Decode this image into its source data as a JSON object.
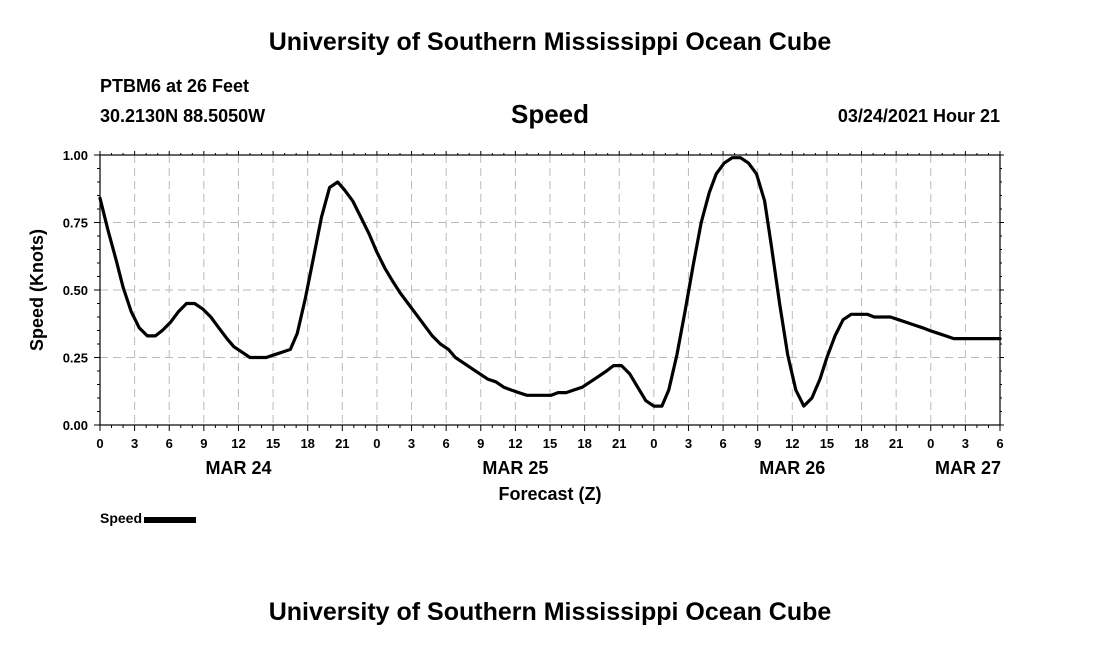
{
  "header": {
    "title": "University of Southern Mississippi Ocean Cube",
    "station": "PTBM6 at 26 Feet",
    "coords": "30.2130N 88.5050W",
    "variable": "Speed",
    "datetime": "03/24/2021 Hour 21"
  },
  "footer": {
    "title": "University of Southern Mississippi Ocean Cube"
  },
  "legend": {
    "label": "Speed"
  },
  "chart_data": {
    "type": "line",
    "title": "Speed",
    "xlabel": "Forecast (Z)",
    "ylabel": "Speed (Knots)",
    "ylim": [
      0,
      1.0
    ],
    "xlim_hours": [
      0,
      78
    ],
    "grid": true,
    "y_ticks": [
      "0.00",
      "0.25",
      "0.50",
      "0.75",
      "1.00"
    ],
    "x_tick_labels": [
      "0",
      "3",
      "6",
      "9",
      "12",
      "15",
      "18",
      "21",
      "0",
      "3",
      "6",
      "9",
      "12",
      "15",
      "18",
      "21",
      "0",
      "3",
      "6",
      "9",
      "12",
      "15",
      "18",
      "21",
      "0",
      "3",
      "6"
    ],
    "date_labels": [
      {
        "label": "MAR 24",
        "hour": 12
      },
      {
        "label": "MAR 25",
        "hour": 36
      },
      {
        "label": "MAR 26",
        "hour": 60
      },
      {
        "label": "MAR 27",
        "hour": 78
      }
    ],
    "series": [
      {
        "name": "Speed",
        "color": "#000000",
        "x": [
          0,
          0.7,
          1.4,
          2,
          2.7,
          3.4,
          4.1,
          4.8,
          5.4,
          6.1,
          6.8,
          7.5,
          8.2,
          8.9,
          9.6,
          10.3,
          11,
          11.6,
          12.3,
          13,
          13.7,
          14.4,
          15.1,
          15.8,
          16.5,
          17.1,
          17.8,
          18.5,
          19.2,
          19.9,
          20.6,
          21.2,
          21.9,
          22.6,
          23.3,
          24,
          24.7,
          25.4,
          26,
          26.7,
          27.4,
          28.1,
          28.8,
          29.5,
          30.2,
          30.8,
          31.5,
          32.2,
          32.9,
          33.6,
          34.3,
          35,
          35.6,
          36.3,
          37,
          37.7,
          38.4,
          39.1,
          39.7,
          40.4,
          41.1,
          41.8,
          42.5,
          43.2,
          43.9,
          44.5,
          45.2,
          45.9,
          46.6,
          47.3,
          48,
          48.7,
          49.3,
          50,
          50.7,
          51.4,
          52.1,
          52.8,
          53.4,
          54.1,
          54.8,
          55.5,
          56.2,
          56.9,
          57.6,
          58.2,
          58.9,
          59.6,
          60.3,
          61,
          61.7,
          62.4,
          63,
          63.7,
          64.4,
          65.1,
          65.8,
          66.5,
          67.1,
          67.8,
          68.5,
          69.2,
          69.9,
          70.6,
          71.3,
          71.9,
          72.6,
          73.3,
          74,
          74.7,
          75.4,
          76,
          76.7,
          77.4,
          78
        ],
        "values": [
          0.84,
          0.72,
          0.61,
          0.51,
          0.42,
          0.36,
          0.33,
          0.33,
          0.35,
          0.38,
          0.42,
          0.45,
          0.45,
          0.43,
          0.4,
          0.36,
          0.32,
          0.29,
          0.27,
          0.25,
          0.25,
          0.25,
          0.26,
          0.27,
          0.28,
          0.34,
          0.47,
          0.62,
          0.77,
          0.88,
          0.9,
          0.87,
          0.83,
          0.77,
          0.71,
          0.64,
          0.58,
          0.53,
          0.49,
          0.45,
          0.41,
          0.37,
          0.33,
          0.3,
          0.28,
          0.25,
          0.23,
          0.21,
          0.19,
          0.17,
          0.16,
          0.14,
          0.13,
          0.12,
          0.11,
          0.11,
          0.11,
          0.11,
          0.12,
          0.12,
          0.13,
          0.14,
          0.16,
          0.18,
          0.2,
          0.22,
          0.22,
          0.19,
          0.14,
          0.09,
          0.07,
          0.07,
          0.13,
          0.26,
          0.42,
          0.59,
          0.75,
          0.86,
          0.93,
          0.97,
          0.99,
          0.99,
          0.97,
          0.93,
          0.83,
          0.66,
          0.45,
          0.26,
          0.13,
          0.07,
          0.1,
          0.17,
          0.25,
          0.33,
          0.39,
          0.41,
          0.41,
          0.41,
          0.4,
          0.4,
          0.4,
          0.39,
          0.38,
          0.37,
          0.36,
          0.35,
          0.34,
          0.33,
          0.32,
          0.32,
          0.32,
          0.32,
          0.32,
          0.32,
          0.32
        ]
      }
    ]
  }
}
